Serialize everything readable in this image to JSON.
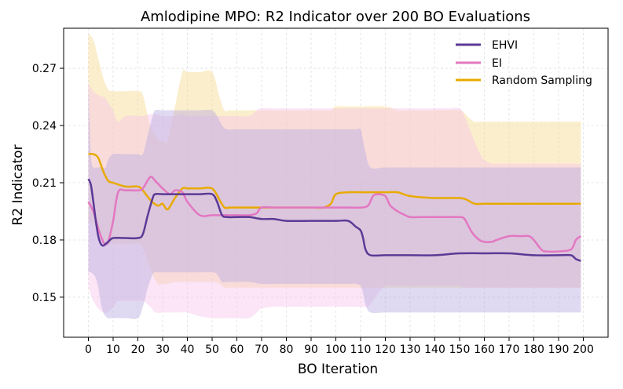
{
  "chart_data": {
    "type": "line",
    "title": "Amlodipine MPO: R2 Indicator over 200 BO Evaluations",
    "xlabel": "BO Iteration",
    "ylabel": "R2 Indicator",
    "xlim": [
      -10,
      210
    ],
    "ylim": [
      0.129,
      0.291
    ],
    "xticks": [
      0,
      10,
      20,
      30,
      40,
      50,
      60,
      70,
      80,
      90,
      100,
      110,
      120,
      130,
      140,
      150,
      160,
      170,
      180,
      190,
      200
    ],
    "xtick_labels": [
      "0",
      "10",
      "20",
      "30",
      "40",
      "50",
      "60",
      "70",
      "80",
      "90",
      "100",
      "110",
      "120",
      "130",
      "140",
      "150",
      "160",
      "170",
      "180",
      "190",
      "200"
    ],
    "yticks": [
      0.15,
      0.18,
      0.21,
      0.24,
      0.27
    ],
    "ytick_labels": [
      "0.15",
      "0.18",
      "0.21",
      "0.24",
      "0.27"
    ],
    "grid": true,
    "legend_position": "top-right",
    "series": [
      {
        "name": "EHVI",
        "color": "#5b3a96",
        "band_color": "#b9aadf",
        "x": [
          0,
          1,
          2,
          3,
          4,
          5,
          6,
          7,
          8,
          10,
          15,
          20,
          22,
          24,
          26,
          27,
          30,
          35,
          40,
          45,
          50,
          52,
          54,
          56,
          60,
          65,
          70,
          75,
          80,
          90,
          100,
          105,
          108,
          110,
          111,
          112,
          114,
          120,
          130,
          140,
          150,
          160,
          170,
          180,
          190,
          195,
          197,
          199
        ],
        "values": [
          0.212,
          0.209,
          0.2,
          0.19,
          0.182,
          0.178,
          0.177,
          0.178,
          0.179,
          0.181,
          0.181,
          0.181,
          0.183,
          0.193,
          0.202,
          0.204,
          0.204,
          0.204,
          0.204,
          0.204,
          0.204,
          0.2,
          0.193,
          0.192,
          0.192,
          0.192,
          0.191,
          0.191,
          0.19,
          0.19,
          0.19,
          0.19,
          0.187,
          0.185,
          0.181,
          0.175,
          0.172,
          0.172,
          0.172,
          0.172,
          0.173,
          0.173,
          0.173,
          0.172,
          0.172,
          0.172,
          0.17,
          0.169
        ],
        "band_upper": [
          0.262,
          0.225,
          0.218,
          0.218,
          0.218,
          0.218,
          0.218,
          0.218,
          0.222,
          0.225,
          0.225,
          0.225,
          0.225,
          0.235,
          0.245,
          0.248,
          0.248,
          0.248,
          0.248,
          0.248,
          0.248,
          0.245,
          0.24,
          0.238,
          0.238,
          0.238,
          0.238,
          0.238,
          0.238,
          0.238,
          0.238,
          0.238,
          0.238,
          0.238,
          0.232,
          0.226,
          0.218,
          0.218,
          0.218,
          0.218,
          0.218,
          0.218,
          0.218,
          0.218,
          0.218,
          0.218,
          0.218,
          0.218
        ],
        "band_lower": [
          0.163,
          0.163,
          0.162,
          0.16,
          0.155,
          0.147,
          0.142,
          0.14,
          0.139,
          0.139,
          0.139,
          0.139,
          0.145,
          0.155,
          0.162,
          0.163,
          0.163,
          0.163,
          0.163,
          0.163,
          0.163,
          0.162,
          0.158,
          0.158,
          0.158,
          0.158,
          0.157,
          0.157,
          0.157,
          0.157,
          0.157,
          0.157,
          0.157,
          0.156,
          0.152,
          0.146,
          0.142,
          0.142,
          0.142,
          0.142,
          0.142,
          0.142,
          0.142,
          0.142,
          0.142,
          0.142,
          0.142,
          0.142
        ]
      },
      {
        "name": "EI",
        "color": "#e377c2",
        "band_color": "#f7c6ea",
        "x": [
          0,
          2,
          4,
          6,
          7,
          8,
          10,
          12,
          15,
          20,
          22,
          25,
          27,
          30,
          33,
          35,
          38,
          40,
          45,
          50,
          55,
          60,
          65,
          68,
          70,
          75,
          80,
          90,
          100,
          105,
          110,
          113,
          115,
          117,
          120,
          122,
          125,
          128,
          130,
          135,
          140,
          145,
          150,
          152,
          155,
          158,
          160,
          163,
          165,
          170,
          175,
          178,
          180,
          183,
          185,
          190,
          195,
          197,
          199
        ],
        "values": [
          0.2,
          0.195,
          0.186,
          0.179,
          0.178,
          0.179,
          0.19,
          0.205,
          0.206,
          0.206,
          0.207,
          0.213,
          0.211,
          0.207,
          0.204,
          0.206,
          0.205,
          0.2,
          0.193,
          0.193,
          0.193,
          0.193,
          0.193,
          0.194,
          0.197,
          0.197,
          0.197,
          0.197,
          0.197,
          0.197,
          0.197,
          0.198,
          0.203,
          0.204,
          0.203,
          0.198,
          0.195,
          0.193,
          0.192,
          0.192,
          0.192,
          0.192,
          0.192,
          0.191,
          0.184,
          0.18,
          0.179,
          0.179,
          0.18,
          0.182,
          0.182,
          0.182,
          0.18,
          0.175,
          0.174,
          0.174,
          0.175,
          0.18,
          0.182
        ],
        "band_upper": [
          0.262,
          0.258,
          0.256,
          0.255,
          0.254,
          0.252,
          0.248,
          0.242,
          0.245,
          0.245,
          0.245,
          0.246,
          0.246,
          0.245,
          0.245,
          0.245,
          0.246,
          0.245,
          0.245,
          0.245,
          0.245,
          0.245,
          0.245,
          0.248,
          0.249,
          0.249,
          0.249,
          0.249,
          0.249,
          0.249,
          0.249,
          0.249,
          0.249,
          0.249,
          0.249,
          0.249,
          0.249,
          0.249,
          0.249,
          0.249,
          0.249,
          0.249,
          0.249,
          0.245,
          0.235,
          0.226,
          0.222,
          0.22,
          0.22,
          0.22,
          0.22,
          0.22,
          0.22,
          0.22,
          0.22,
          0.22,
          0.22,
          0.22,
          0.22
        ],
        "band_lower": [
          0.155,
          0.148,
          0.144,
          0.142,
          0.142,
          0.142,
          0.145,
          0.148,
          0.148,
          0.148,
          0.148,
          0.145,
          0.142,
          0.142,
          0.142,
          0.142,
          0.142,
          0.142,
          0.14,
          0.139,
          0.139,
          0.139,
          0.139,
          0.142,
          0.144,
          0.145,
          0.145,
          0.145,
          0.145,
          0.145,
          0.145,
          0.145,
          0.148,
          0.152,
          0.156,
          0.156,
          0.156,
          0.156,
          0.156,
          0.156,
          0.156,
          0.156,
          0.156,
          0.155,
          0.155,
          0.155,
          0.155,
          0.155,
          0.155,
          0.155,
          0.155,
          0.155,
          0.155,
          0.155,
          0.155,
          0.155,
          0.155,
          0.155,
          0.155
        ]
      },
      {
        "name": "Random Sampling",
        "color": "#e8aa00",
        "band_color": "#f7d98e",
        "x": [
          0,
          2,
          4,
          6,
          8,
          10,
          15,
          20,
          22,
          25,
          28,
          30,
          32,
          35,
          38,
          40,
          45,
          50,
          53,
          55,
          57,
          60,
          70,
          80,
          90,
          95,
          98,
          100,
          105,
          110,
          120,
          125,
          130,
          140,
          150,
          153,
          156,
          160,
          170,
          180,
          190,
          199
        ],
        "values": [
          0.225,
          0.225,
          0.223,
          0.216,
          0.211,
          0.21,
          0.208,
          0.208,
          0.206,
          0.201,
          0.198,
          0.199,
          0.196,
          0.202,
          0.207,
          0.207,
          0.207,
          0.207,
          0.201,
          0.197,
          0.197,
          0.197,
          0.197,
          0.197,
          0.197,
          0.197,
          0.199,
          0.204,
          0.205,
          0.205,
          0.205,
          0.205,
          0.203,
          0.202,
          0.202,
          0.201,
          0.199,
          0.199,
          0.199,
          0.199,
          0.199,
          0.199
        ],
        "band_upper": [
          0.288,
          0.285,
          0.275,
          0.265,
          0.259,
          0.258,
          0.258,
          0.258,
          0.256,
          0.24,
          0.233,
          0.232,
          0.232,
          0.25,
          0.268,
          0.268,
          0.268,
          0.268,
          0.255,
          0.248,
          0.248,
          0.248,
          0.248,
          0.248,
          0.248,
          0.248,
          0.248,
          0.25,
          0.25,
          0.25,
          0.25,
          0.248,
          0.248,
          0.248,
          0.248,
          0.245,
          0.242,
          0.242,
          0.242,
          0.242,
          0.242,
          0.242
        ],
        "band_lower": [
          0.19,
          0.188,
          0.185,
          0.18,
          0.178,
          0.178,
          0.178,
          0.178,
          0.176,
          0.165,
          0.157,
          0.157,
          0.157,
          0.158,
          0.158,
          0.158,
          0.158,
          0.158,
          0.157,
          0.155,
          0.155,
          0.155,
          0.155,
          0.155,
          0.155,
          0.155,
          0.155,
          0.155,
          0.155,
          0.155,
          0.155,
          0.155,
          0.155,
          0.155,
          0.155,
          0.155,
          0.155,
          0.155,
          0.155,
          0.155,
          0.155,
          0.155
        ]
      }
    ]
  }
}
